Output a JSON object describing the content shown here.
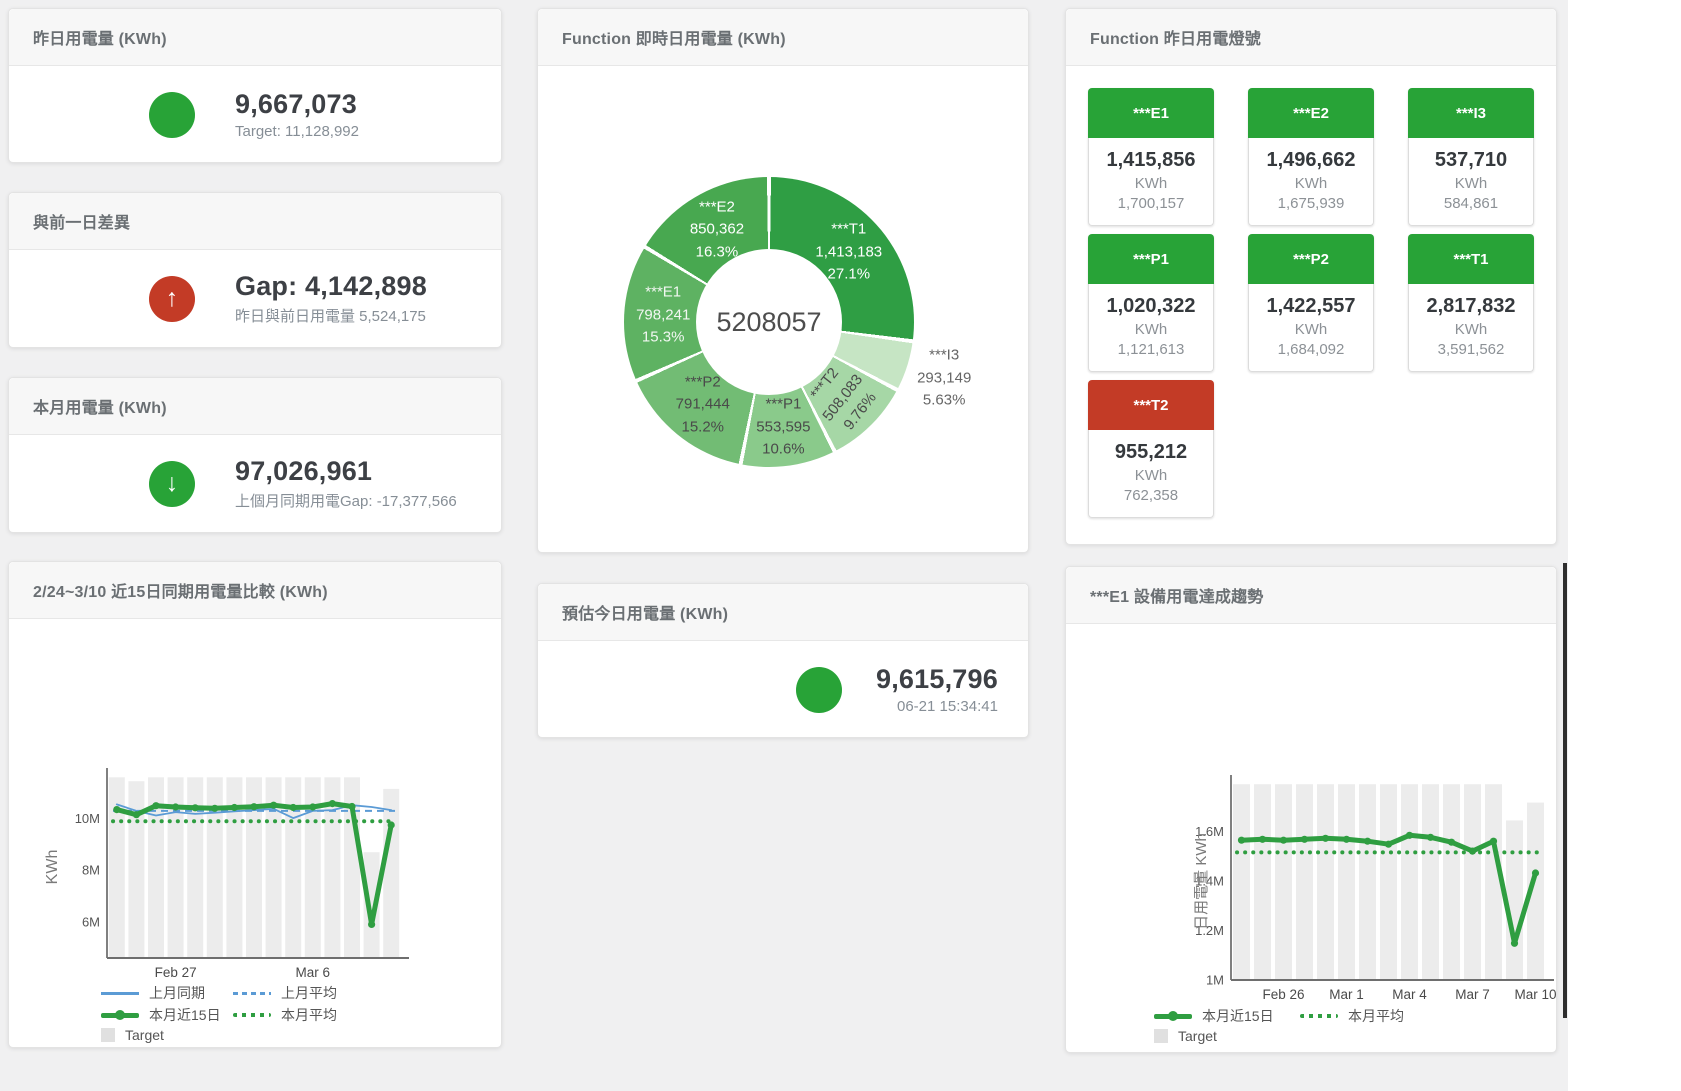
{
  "theme": {
    "green": "#28a337",
    "red": "#c33b26",
    "chart_green": "#2f9e41",
    "chart_blue": "#5b9bd5",
    "bar_gray": "#ececec"
  },
  "icons": {
    "up": "↑",
    "down": "↓"
  },
  "cards": {
    "yesterday": {
      "title": "昨日用電量 (KWh)",
      "value": "9,667,073",
      "subtitle": "Target: 11,128,992"
    },
    "gap": {
      "title": "與前一日差異",
      "value": "Gap: 4,142,898",
      "subtitle": "昨日與前日用電量 5,524,175"
    },
    "month": {
      "title": "本月用電量 (KWh)",
      "value": "97,026,961",
      "subtitle": "上個月同期用電Gap: -17,377,566"
    },
    "estimate": {
      "title": "預估今日用電量 (KWh)",
      "value": "9,615,796",
      "subtitle": "06-21 15:34:41"
    }
  },
  "lights": {
    "title": "Function 昨日用電燈號",
    "tiles": [
      {
        "label": "***E1",
        "value": "1,415,856",
        "unit": "KWh",
        "target": "1,700,157",
        "status": "ok"
      },
      {
        "label": "***E2",
        "value": "1,496,662",
        "unit": "KWh",
        "target": "1,675,939",
        "status": "ok"
      },
      {
        "label": "***I3",
        "value": "537,710",
        "unit": "KWh",
        "target": "584,861",
        "status": "ok"
      },
      {
        "label": "***P1",
        "value": "1,020,322",
        "unit": "KWh",
        "target": "1,121,613",
        "status": "ok"
      },
      {
        "label": "***P2",
        "value": "1,422,557",
        "unit": "KWh",
        "target": "1,684,092",
        "status": "ok"
      },
      {
        "label": "***T1",
        "value": "2,817,832",
        "unit": "KWh",
        "target": "3,591,562",
        "status": "ok"
      },
      {
        "label": "***T2",
        "value": "955,212",
        "unit": "KWh",
        "target": "762,358",
        "status": "alert"
      }
    ]
  },
  "chart_data": [
    {
      "type": "pie",
      "title": "Function 即時日用電量 (KWh)",
      "center_total": "5208057",
      "legend_position": "none",
      "slices": [
        {
          "name": "***T1",
          "value": 1413183,
          "value_label": "1,413,183",
          "pct": 27.1,
          "pct_label": "27.1%",
          "color": "#2f9e44",
          "label_color": "#ffffff",
          "label_pos": "inside",
          "label_rotate": 0
        },
        {
          "name": "***I3",
          "value": 293149,
          "value_label": "293,149",
          "pct": 5.63,
          "pct_label": "5.63%",
          "color": "#c6e5c4",
          "label_color": "#666666",
          "label_pos": "outside",
          "label_rotate": 0
        },
        {
          "name": "***T2",
          "value": 508083,
          "value_label": "508,083",
          "pct": 9.76,
          "pct_label": "9.76%",
          "color": "#a6d7a6",
          "label_color": "#4a4a4a",
          "label_pos": "inside",
          "label_rotate": -52
        },
        {
          "name": "***P1",
          "value": 553595,
          "value_label": "553,595",
          "pct": 10.6,
          "pct_label": "10.6%",
          "color": "#8aca8b",
          "label_color": "#4a4a4a",
          "label_pos": "inside",
          "label_rotate": 0
        },
        {
          "name": "***P2",
          "value": 791444,
          "value_label": "791,444",
          "pct": 15.2,
          "pct_label": "15.2%",
          "color": "#72bc74",
          "label_color": "#4a4a4a",
          "label_pos": "inside",
          "label_rotate": 0
        },
        {
          "name": "***E1",
          "value": 798241,
          "value_label": "798,241",
          "pct": 15.3,
          "pct_label": "15.3%",
          "color": "#5eb262",
          "label_color": "#f2f7f2",
          "label_pos": "inside",
          "label_rotate": 0
        },
        {
          "name": "***E2",
          "value": 850362,
          "value_label": "850,362",
          "pct": 16.32,
          "pct_label": "16.3%",
          "color": "#48a850",
          "label_color": "#ffffff",
          "label_pos": "inside",
          "label_rotate": 0
        }
      ]
    },
    {
      "type": "line",
      "title": "2/24~3/10 近15日同期用電量比較 (KWh)",
      "ylabel": "KWh",
      "ylim": [
        4600000,
        11650000
      ],
      "grid": false,
      "yticks": [
        {
          "v": 6000000,
          "label": "6M"
        },
        {
          "v": 8000000,
          "label": "8M"
        },
        {
          "v": 10000000,
          "label": "10M"
        }
      ],
      "xticks": [
        {
          "i": 3,
          "label": "Feb 27"
        },
        {
          "i": 10,
          "label": "Mar 6"
        }
      ],
      "target_bars": [
        11600000,
        11450000,
        11600000,
        11600000,
        11600000,
        11600000,
        11600000,
        11600000,
        11600000,
        11600000,
        11600000,
        11600000,
        11600000,
        8700000,
        11150000
      ],
      "series": [
        {
          "name": "上月同期",
          "style": "thin",
          "color": "#5b9bd5",
          "values": [
            10550000,
            10300000,
            10120000,
            10250000,
            10180000,
            10230000,
            10280000,
            10330000,
            10380000,
            10020000,
            10300000,
            10330000,
            10520000,
            10450000,
            10330000
          ]
        },
        {
          "name": "上月平均",
          "style": "dashed",
          "color": "#5b9bd5",
          "constant": 10300000
        },
        {
          "name": "本月平均",
          "style": "dotted",
          "color": "#2f9e41",
          "constant": 9900000
        },
        {
          "name": "本月近15日",
          "style": "thick",
          "color": "#2f9e41",
          "values": [
            10350000,
            10150000,
            10500000,
            10450000,
            10420000,
            10400000,
            10430000,
            10460000,
            10520000,
            10430000,
            10450000,
            10580000,
            10470000,
            5900000,
            9750000
          ]
        }
      ],
      "legend_rows": [
        [
          {
            "label": "上月同期",
            "swatch": "blue-line"
          },
          {
            "label": "上月平均",
            "swatch": "blue-dash"
          }
        ],
        [
          {
            "label": "本月近15日",
            "swatch": "green-thick"
          },
          {
            "label": "本月平均",
            "swatch": "green-dot"
          }
        ],
        [
          {
            "label": "Target",
            "swatch": "gray-square"
          }
        ]
      ]
    },
    {
      "type": "line",
      "title": "***E1 設備用電達成趨勢",
      "ylabel": "日用電量 KWh",
      "ylim": [
        1000000,
        1795000
      ],
      "grid": false,
      "yticks": [
        {
          "v": 1000000,
          "label": "1M"
        },
        {
          "v": 1200000,
          "label": "1.2M"
        },
        {
          "v": 1400000,
          "label": "1.4M"
        },
        {
          "v": 1600000,
          "label": "1.6M"
        }
      ],
      "xticks": [
        {
          "i": 2,
          "label": "Feb 26"
        },
        {
          "i": 5,
          "label": "Mar 1"
        },
        {
          "i": 8,
          "label": "Mar 4"
        },
        {
          "i": 11,
          "label": "Mar 7"
        },
        {
          "i": 14,
          "label": "Mar 10"
        }
      ],
      "target_bars": [
        1790000,
        1790000,
        1790000,
        1790000,
        1790000,
        1790000,
        1790000,
        1790000,
        1790000,
        1790000,
        1790000,
        1790000,
        1790000,
        1644000,
        1716000
      ],
      "series": [
        {
          "name": "本月平均",
          "style": "dotted",
          "color": "#2f9e41",
          "constant": 1515000
        },
        {
          "name": "本月近15日",
          "style": "thick",
          "color": "#2f9e41",
          "values": [
            1564000,
            1568000,
            1564000,
            1568000,
            1572000,
            1568000,
            1560000,
            1548000,
            1584000,
            1576000,
            1556000,
            1520000,
            1560000,
            1148000,
            1432000
          ]
        }
      ],
      "legend_rows": [
        [
          {
            "label": "本月近15日",
            "swatch": "green-thick"
          },
          {
            "label": "本月平均",
            "swatch": "green-dot"
          }
        ],
        [
          {
            "label": "Target",
            "swatch": "gray-square"
          }
        ]
      ]
    }
  ]
}
